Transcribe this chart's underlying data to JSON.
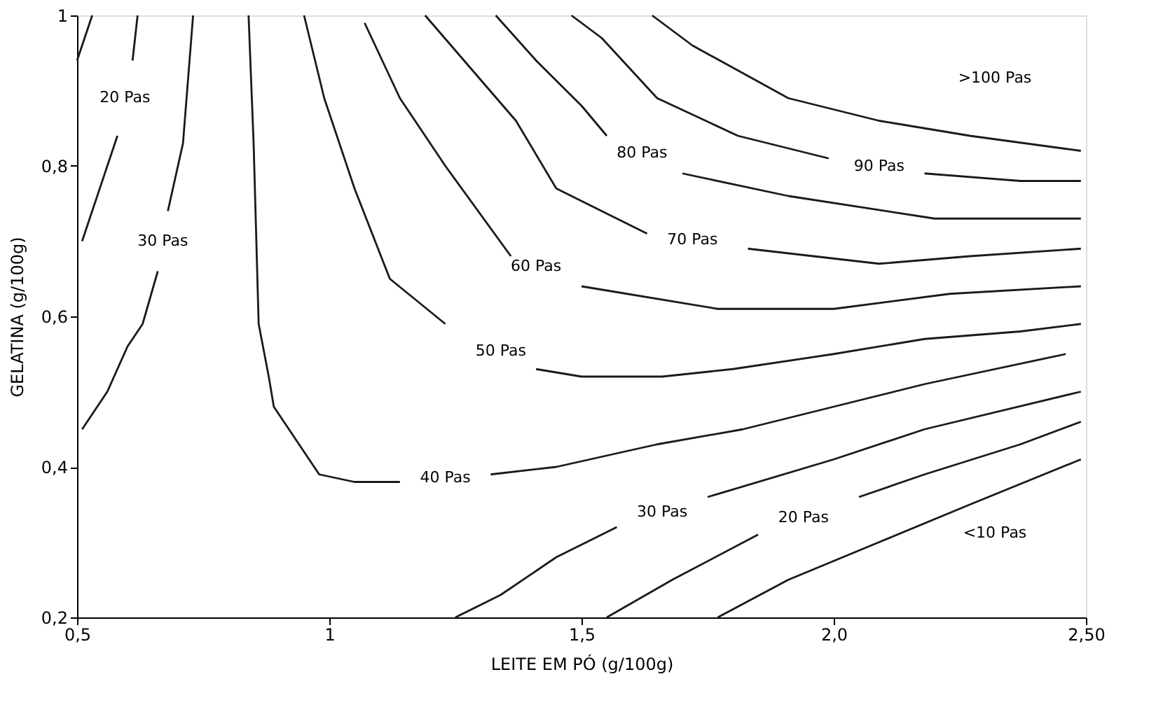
{
  "chart_data": {
    "type": "line",
    "xlabel": "LEITE EM PÓ (g/100g)",
    "ylabel": "GELATINA (g/100g)",
    "xlim": [
      0.5,
      2.5
    ],
    "ylim": [
      0.2,
      1.0
    ],
    "xticks": [
      {
        "value": 0.5,
        "label": "0,5"
      },
      {
        "value": 1,
        "label": "1"
      },
      {
        "value": 1.5,
        "label": "1,5"
      },
      {
        "value": 2.0,
        "label": "2,0"
      },
      {
        "value": 2.5,
        "label": "2,50"
      }
    ],
    "yticks": [
      {
        "value": 0.2,
        "label": "0,2"
      },
      {
        "value": 0.4,
        "label": "0,4"
      },
      {
        "value": 0.6,
        "label": "0,6"
      },
      {
        "value": 0.8,
        "label": "0,8"
      },
      {
        "value": 1,
        "label": "1"
      }
    ],
    "grid": false,
    "legend": false,
    "marker": "none",
    "line_style": "solid",
    "series": [
      {
        "color": "#1a1a1a",
        "x": [
          0.5,
          0.53
        ],
        "values": [
          0.94,
          1.0
        ]
      },
      {
        "name": "20 Pas",
        "color": "#1a1a1a",
        "x": [
          0.51,
          0.58,
          0.595,
          0.61,
          0.62
        ],
        "values": [
          0.7,
          0.84,
          null,
          0.94,
          1.0
        ]
      },
      {
        "name": "30 Pas",
        "color": "#1a1a1a",
        "x": [
          0.51,
          0.56,
          0.6,
          0.63,
          0.66,
          0.67,
          0.68,
          0.71,
          0.73
        ],
        "values": [
          0.45,
          0.5,
          0.56,
          0.59,
          0.66,
          null,
          0.74,
          0.83,
          1.0
        ]
      },
      {
        "name": "40 Pas",
        "color": "#1a1a1a",
        "x": [
          0.84,
          0.85,
          0.86,
          0.88,
          0.89,
          0.94,
          0.98,
          1.05,
          1.14,
          1.23,
          1.32,
          1.45,
          1.65,
          1.82,
          2.0,
          2.18,
          2.46
        ],
        "values": [
          1.0,
          0.83,
          0.59,
          0.52,
          0.48,
          0.43,
          0.39,
          0.38,
          0.38,
          null,
          0.39,
          0.4,
          0.43,
          0.45,
          0.48,
          0.51,
          0.55
        ]
      },
      {
        "name": "50 Pas",
        "color": "#1a1a1a",
        "x": [
          0.95,
          0.99,
          1.05,
          1.12,
          1.23,
          1.34,
          1.41,
          1.5,
          1.66,
          1.8,
          2.0,
          2.18,
          2.37,
          2.49
        ],
        "values": [
          1.0,
          0.89,
          0.77,
          0.65,
          0.59,
          null,
          0.53,
          0.52,
          0.52,
          0.53,
          0.55,
          0.57,
          0.58,
          0.59
        ]
      },
      {
        "name": "60 Pas",
        "color": "#1a1a1a",
        "x": [
          1.07,
          1.14,
          1.23,
          1.36,
          1.41,
          1.5,
          1.77,
          2.0,
          2.23,
          2.49
        ],
        "values": [
          0.99,
          0.89,
          0.8,
          0.68,
          null,
          0.64,
          0.61,
          0.61,
          0.63,
          0.64
        ]
      },
      {
        "name": "70 Pas",
        "color": "#1a1a1a",
        "x": [
          1.19,
          1.28,
          1.37,
          1.45,
          1.63,
          1.72,
          1.83,
          2.09,
          2.27,
          2.49
        ],
        "values": [
          1.0,
          0.93,
          0.86,
          0.77,
          0.71,
          null,
          0.69,
          0.67,
          0.68,
          0.69
        ]
      },
      {
        "name": "80 Pas",
        "color": "#1a1a1a",
        "x": [
          1.33,
          1.41,
          1.5,
          1.55,
          1.62,
          1.7,
          1.91,
          2.2,
          2.49
        ],
        "values": [
          1.0,
          0.94,
          0.88,
          0.84,
          null,
          0.79,
          0.76,
          0.73,
          0.73
        ]
      },
      {
        "name": "90 Pas",
        "color": "#1a1a1a",
        "x": [
          1.48,
          1.54,
          1.65,
          1.81,
          1.99,
          2.09,
          2.18,
          2.37,
          2.49
        ],
        "values": [
          1.0,
          0.97,
          0.89,
          0.84,
          0.81,
          null,
          0.79,
          0.78,
          0.78
        ]
      },
      {
        "color": "#1a1a1a",
        "x": [
          1.64,
          1.72,
          1.91,
          2.09,
          2.27,
          2.49
        ],
        "values": [
          1.0,
          0.96,
          0.89,
          0.86,
          0.84,
          0.82
        ]
      },
      {
        "name": "30 Pas",
        "color": "#1a1a1a",
        "x": [
          1.25,
          1.34,
          1.45,
          1.57,
          1.66,
          1.75,
          2.0,
          2.18,
          2.49
        ],
        "values": [
          0.2,
          0.23,
          0.28,
          0.32,
          null,
          0.36,
          0.41,
          0.45,
          0.5
        ]
      },
      {
        "name": "20 Pas",
        "color": "#1a1a1a",
        "x": [
          1.55,
          1.68,
          1.85,
          1.94,
          2.05,
          2.18,
          2.37,
          2.49
        ],
        "values": [
          0.2,
          0.25,
          0.31,
          null,
          0.36,
          0.39,
          0.43,
          0.46
        ]
      },
      {
        "color": "#1a1a1a",
        "x": [
          1.77,
          1.91,
          2.09,
          2.27,
          2.49
        ],
        "values": [
          0.2,
          0.25,
          0.3,
          0.35,
          0.41
        ]
      }
    ],
    "annotations": [
      ">100 Pas",
      "<10 Pas"
    ]
  }
}
